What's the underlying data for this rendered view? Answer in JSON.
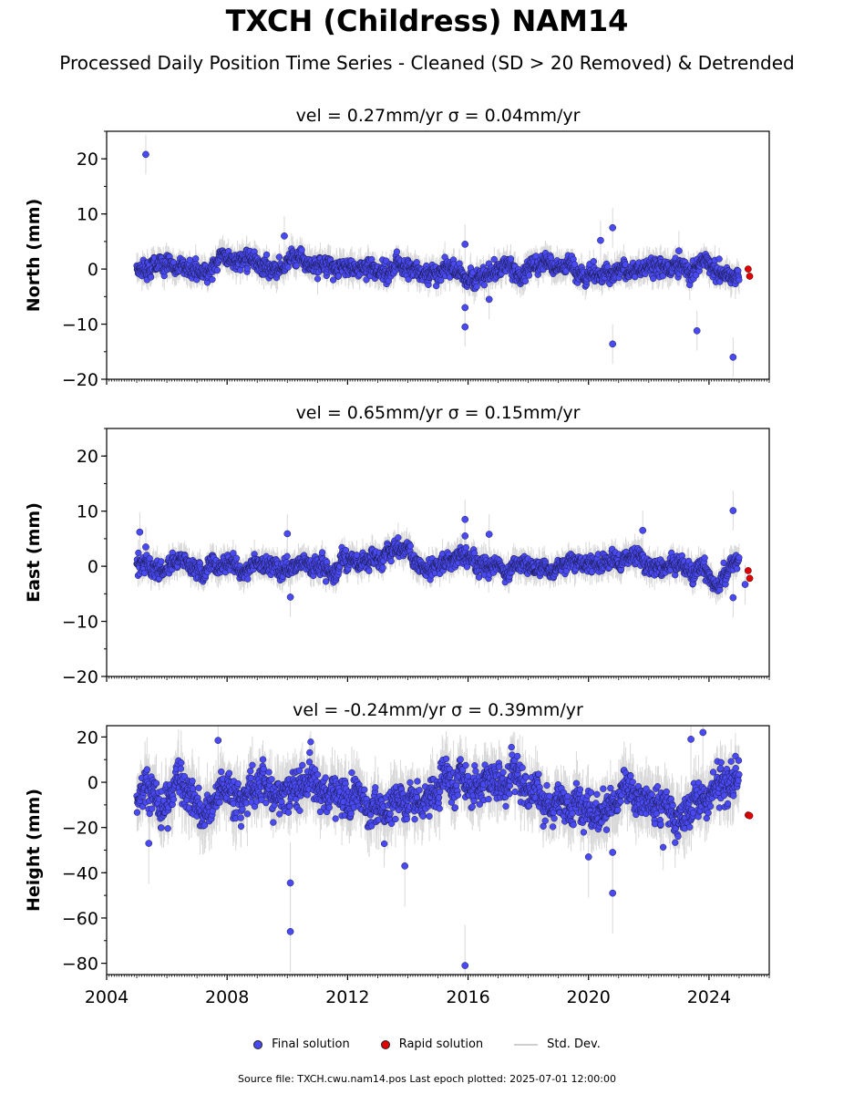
{
  "title": "TXCH (Childress) NAM14",
  "subtitle": "Processed Daily Position Time Series - Cleaned (SD > 20 Removed) & Detrended",
  "source_note": "Source file: TXCH.cwu.nam14.pos  Last epoch plotted: 2025-07-01 12:00:00",
  "legend": {
    "final": "Final solution",
    "rapid": "Rapid solution",
    "std": "Std. Dev."
  },
  "colors": {
    "final": "#4a4af5",
    "rapid": "#e00000",
    "std": "#c8c8c8"
  },
  "chart_data": [
    {
      "type": "scatter",
      "panel_title": "vel = 0.27mm/yr   σ = 0.04mm/yr",
      "ylabel": "North (mm)",
      "xlim": [
        2004,
        2026
      ],
      "ylim": [
        -20,
        25
      ],
      "yticks": [
        -20,
        -10,
        0,
        10,
        20
      ],
      "x_ticks": [],
      "noise_sd": 1.2,
      "outliers": [
        [
          2005.3,
          20.8
        ],
        [
          2009.9,
          6.0
        ],
        [
          2015.9,
          -10.5
        ],
        [
          2015.9,
          -7.0
        ],
        [
          2015.9,
          4.5
        ],
        [
          2016.7,
          -5.5
        ],
        [
          2020.4,
          5.2
        ],
        [
          2020.8,
          7.5
        ],
        [
          2020.8,
          -13.6
        ],
        [
          2023.6,
          -11.2
        ],
        [
          2024.8,
          -16.0
        ],
        [
          2023.0,
          3.3
        ]
      ],
      "rapid": [
        [
          2025.3,
          0.0
        ],
        [
          2025.35,
          -1.3
        ]
      ]
    },
    {
      "type": "scatter",
      "panel_title": "vel = 0.65mm/yr   σ = 0.15mm/yr",
      "ylabel": "East (mm)",
      "xlim": [
        2004,
        2026
      ],
      "ylim": [
        -20,
        25
      ],
      "yticks": [
        -20,
        -10,
        0,
        10,
        20
      ],
      "x_ticks": [],
      "noise_sd": 1.2,
      "outliers": [
        [
          2005.1,
          6.2
        ],
        [
          2005.3,
          3.5
        ],
        [
          2010.0,
          5.9
        ],
        [
          2010.1,
          -5.6
        ],
        [
          2015.9,
          8.5
        ],
        [
          2015.9,
          5.5
        ],
        [
          2016.7,
          5.8
        ],
        [
          2021.8,
          6.5
        ],
        [
          2024.8,
          10.1
        ],
        [
          2024.8,
          -5.7
        ],
        [
          2025.2,
          -3.3
        ]
      ],
      "rapid": [
        [
          2025.3,
          -0.8
        ],
        [
          2025.35,
          -2.2
        ]
      ]
    },
    {
      "type": "scatter",
      "panel_title": "vel = -0.24mm/yr   σ = 0.39mm/yr",
      "ylabel": "Height (mm)",
      "xlim": [
        2004,
        2026
      ],
      "ylim": [
        -85,
        25
      ],
      "yticks": [
        -80,
        -60,
        -40,
        -20,
        0,
        20
      ],
      "x_ticks": [
        2004,
        2008,
        2012,
        2016,
        2020,
        2024
      ],
      "noise_sd": 6.0,
      "outliers": [
        [
          2010.1,
          -44.5
        ],
        [
          2010.1,
          -66.0
        ],
        [
          2015.9,
          -81.0
        ],
        [
          2020.0,
          -33.0
        ],
        [
          2020.8,
          -49.0
        ],
        [
          2020.8,
          -31.0
        ],
        [
          2023.8,
          22.0
        ],
        [
          2023.4,
          19.0
        ],
        [
          2007.7,
          18.5
        ],
        [
          2005.4,
          -27.0
        ],
        [
          2013.9,
          -37.0
        ]
      ],
      "rapid": [
        [
          2025.3,
          -14.5
        ],
        [
          2025.35,
          -14.8
        ]
      ]
    }
  ]
}
